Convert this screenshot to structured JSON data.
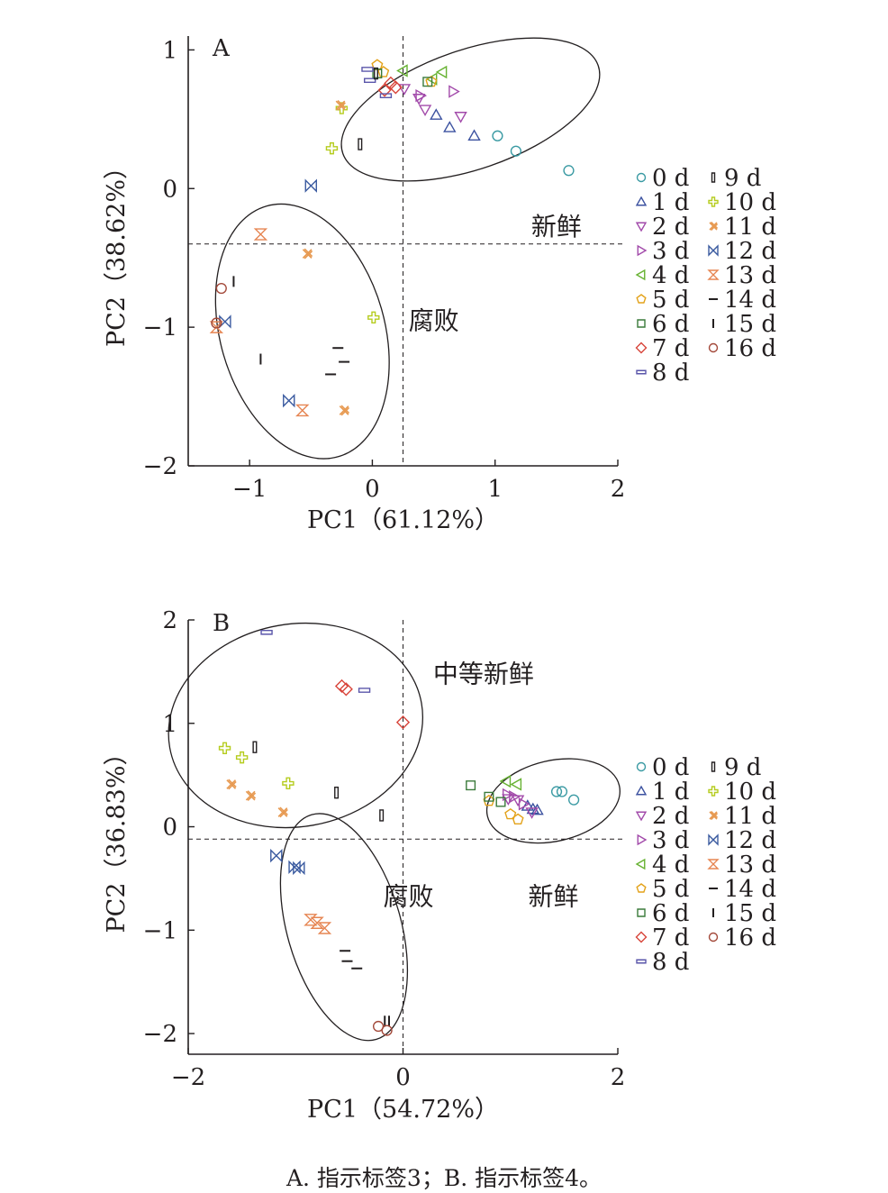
{
  "caption": "A. 指示标签3；B. 指示标签4。",
  "colors": {
    "0 d": "#3a9aa3",
    "1 d": "#3c52a0",
    "2 d": "#a24aaa",
    "3 d": "#a24aaa",
    "4 d": "#67b232",
    "5 d": "#e3a21a",
    "6 d": "#3a7a3a",
    "7 d": "#d8443a",
    "8 d": "#5a56aa",
    "9 d": "#231f20",
    "10 d": "#b5cc1e",
    "11 d": "#e79a52",
    "12 d": "#3b5ba0",
    "13 d": "#e68552",
    "14 d": "#231f20",
    "15 d": "#231f20",
    "16 d": "#a3493a"
  },
  "chart_data": [
    {
      "type": "scatter",
      "panel_label": "A",
      "xlabel": "PC1（61.12%）",
      "ylabel": "PC2（38.62%）",
      "xlim": [
        -1.5,
        2
      ],
      "ylim": [
        -2,
        1.1
      ],
      "xticks": [
        -1,
        0,
        1,
        2
      ],
      "yticks": [
        -2,
        -1,
        0,
        1
      ],
      "xtick_labels": [
        "−1",
        "0",
        "1",
        "2"
      ],
      "ytick_labels": [
        "−2",
        "−1",
        "0",
        "1"
      ],
      "reference_lines": {
        "x": 0.25,
        "y": -0.4
      },
      "legend_position": "right",
      "legend": [
        {
          "symbol": "circle",
          "label": "0 d",
          "key": "0 d"
        },
        {
          "symbol": "tri_up",
          "label": "1 d",
          "key": "1 d"
        },
        {
          "symbol": "tri_down",
          "label": "2 d",
          "key": "2 d"
        },
        {
          "symbol": "tri_right",
          "label": "3 d",
          "key": "3 d"
        },
        {
          "symbol": "tri_left",
          "label": "4 d",
          "key": "4 d"
        },
        {
          "symbol": "pentagon",
          "label": "5 d",
          "key": "5 d"
        },
        {
          "symbol": "square",
          "label": "6 d",
          "key": "6 d"
        },
        {
          "symbol": "diamond",
          "label": "7 d",
          "key": "7 d"
        },
        {
          "symbol": "hbar",
          "label": "8 d",
          "key": "8 d"
        },
        {
          "symbol": "vbar",
          "label": "9 d",
          "key": "9 d"
        },
        {
          "symbol": "plus",
          "label": "10 d",
          "key": "10 d"
        },
        {
          "symbol": "xcross",
          "label": "11 d",
          "key": "11 d"
        },
        {
          "symbol": "bowtie_h",
          "label": "12 d",
          "key": "12 d"
        },
        {
          "symbol": "bowtie_v",
          "label": "13 d",
          "key": "13 d"
        },
        {
          "symbol": "hline",
          "label": "14 d",
          "key": "14 d"
        },
        {
          "symbol": "vline",
          "label": "15 d",
          "key": "15 d"
        },
        {
          "symbol": "circle",
          "label": "16 d",
          "key": "16 d"
        }
      ],
      "annotations": [
        {
          "text": "新鲜",
          "x": 1.5,
          "y": -0.27
        },
        {
          "text": "腐败",
          "x": 0.5,
          "y": -0.95
        }
      ],
      "ellipses": [
        {
          "cx": 0.8,
          "cy": 0.57,
          "rx": 1.1,
          "ry": 0.43,
          "angle": -19
        },
        {
          "cx": -0.57,
          "cy": -1.03,
          "rx": 0.67,
          "ry": 0.94,
          "angle": -16
        }
      ],
      "points": [
        {
          "key": "0 d",
          "symbol": "circle",
          "x": 1.02,
          "y": 0.38
        },
        {
          "key": "0 d",
          "symbol": "circle",
          "x": 1.17,
          "y": 0.27
        },
        {
          "key": "0 d",
          "symbol": "circle",
          "x": 1.6,
          "y": 0.13
        },
        {
          "key": "1 d",
          "symbol": "tri_up",
          "x": 0.52,
          "y": 0.53
        },
        {
          "key": "1 d",
          "symbol": "tri_up",
          "x": 0.63,
          "y": 0.44
        },
        {
          "key": "1 d",
          "symbol": "tri_up",
          "x": 0.83,
          "y": 0.38
        },
        {
          "key": "2 d",
          "symbol": "tri_down",
          "x": 0.26,
          "y": 0.72
        },
        {
          "key": "2 d",
          "symbol": "tri_down",
          "x": 0.38,
          "y": 0.65
        },
        {
          "key": "2 d",
          "symbol": "tri_down",
          "x": 0.43,
          "y": 0.57
        },
        {
          "key": "2 d",
          "symbol": "tri_down",
          "x": 0.72,
          "y": 0.52
        },
        {
          "key": "3 d",
          "symbol": "tri_right",
          "x": 0.66,
          "y": 0.7
        },
        {
          "key": "3 d",
          "symbol": "tri_right",
          "x": 0.39,
          "y": 0.67
        },
        {
          "key": "4 d",
          "symbol": "tri_left",
          "x": 0.25,
          "y": 0.85
        },
        {
          "key": "4 d",
          "symbol": "tri_left",
          "x": 0.57,
          "y": 0.84
        },
        {
          "key": "4 d",
          "symbol": "tri_left",
          "x": 0.49,
          "y": 0.79
        },
        {
          "key": "5 d",
          "symbol": "pentagon",
          "x": 0.04,
          "y": 0.89
        },
        {
          "key": "5 d",
          "symbol": "pentagon",
          "x": 0.09,
          "y": 0.84
        },
        {
          "key": "5 d",
          "symbol": "pentagon",
          "x": 0.48,
          "y": 0.77
        },
        {
          "key": "6 d",
          "symbol": "square",
          "x": 0.45,
          "y": 0.77
        },
        {
          "key": "6 d",
          "symbol": "square",
          "x": 0.04,
          "y": 0.83
        },
        {
          "key": "7 d",
          "symbol": "diamond",
          "x": 0.15,
          "y": 0.76
        },
        {
          "key": "7 d",
          "symbol": "diamond",
          "x": 0.1,
          "y": 0.71
        },
        {
          "key": "7 d",
          "symbol": "diamond",
          "x": 0.19,
          "y": 0.73
        },
        {
          "key": "8 d",
          "symbol": "hbar",
          "x": -0.04,
          "y": 0.86
        },
        {
          "key": "8 d",
          "symbol": "hbar",
          "x": -0.02,
          "y": 0.78
        },
        {
          "key": "8 d",
          "symbol": "hbar",
          "x": 0.11,
          "y": 0.67
        },
        {
          "key": "9 d",
          "symbol": "vbar",
          "x": 0.03,
          "y": 0.83
        },
        {
          "key": "9 d",
          "symbol": "vbar",
          "x": -0.1,
          "y": 0.32
        },
        {
          "key": "10 d",
          "symbol": "plus",
          "x": -0.33,
          "y": 0.29
        },
        {
          "key": "10 d",
          "symbol": "plus",
          "x": -0.25,
          "y": 0.58
        },
        {
          "key": "10 d",
          "symbol": "plus",
          "x": 0.01,
          "y": -0.93
        },
        {
          "key": "11 d",
          "symbol": "xcross",
          "x": -0.26,
          "y": 0.6
        },
        {
          "key": "11 d",
          "symbol": "xcross",
          "x": -0.53,
          "y": -0.47
        },
        {
          "key": "11 d",
          "symbol": "xcross",
          "x": -0.23,
          "y": -1.6
        },
        {
          "key": "12 d",
          "symbol": "bowtie_h",
          "x": -0.5,
          "y": 0.02
        },
        {
          "key": "12 d",
          "symbol": "bowtie_h",
          "x": -1.2,
          "y": -0.96
        },
        {
          "key": "12 d",
          "symbol": "bowtie_h",
          "x": -0.68,
          "y": -1.53
        },
        {
          "key": "13 d",
          "symbol": "bowtie_v",
          "x": -0.91,
          "y": -0.33
        },
        {
          "key": "13 d",
          "symbol": "bowtie_v",
          "x": -1.27,
          "y": -1.0
        },
        {
          "key": "13 d",
          "symbol": "bowtie_v",
          "x": -0.57,
          "y": -1.6
        },
        {
          "key": "14 d",
          "symbol": "hline",
          "x": -0.28,
          "y": -1.15
        },
        {
          "key": "14 d",
          "symbol": "hline",
          "x": -0.23,
          "y": -1.25
        },
        {
          "key": "14 d",
          "symbol": "hline",
          "x": -0.34,
          "y": -1.34
        },
        {
          "key": "15 d",
          "symbol": "vline",
          "x": -1.13,
          "y": -0.67
        },
        {
          "key": "15 d",
          "symbol": "vline",
          "x": -0.91,
          "y": -1.23
        },
        {
          "key": "16 d",
          "symbol": "circle",
          "x": -1.23,
          "y": -0.72
        },
        {
          "key": "16 d",
          "symbol": "circle",
          "x": -1.27,
          "y": -0.97
        }
      ]
    },
    {
      "type": "scatter",
      "panel_label": "B",
      "xlabel": "PC1（54.72%）",
      "ylabel": "PC2（36.83%）",
      "xlim": [
        -2,
        2
      ],
      "ylim": [
        -2.2,
        2
      ],
      "xticks": [
        -2,
        0,
        2
      ],
      "yticks": [
        -2,
        -1,
        0,
        1,
        2
      ],
      "xtick_labels": [
        "−2",
        "0",
        "2"
      ],
      "ytick_labels": [
        "−2",
        "−1",
        "0",
        "1",
        "2"
      ],
      "reference_lines": {
        "x": 0,
        "y": -0.12
      },
      "legend_position": "right",
      "legend": [
        {
          "symbol": "circle",
          "label": "0 d",
          "key": "0 d"
        },
        {
          "symbol": "tri_up",
          "label": "1 d",
          "key": "1 d"
        },
        {
          "symbol": "tri_down",
          "label": "2 d",
          "key": "2 d"
        },
        {
          "symbol": "tri_right",
          "label": "3 d",
          "key": "3 d"
        },
        {
          "symbol": "tri_left",
          "label": "4 d",
          "key": "4 d"
        },
        {
          "symbol": "pentagon",
          "label": "5 d",
          "key": "5 d"
        },
        {
          "symbol": "square",
          "label": "6 d",
          "key": "6 d"
        },
        {
          "symbol": "diamond",
          "label": "7 d",
          "key": "7 d"
        },
        {
          "symbol": "hbar",
          "label": "8 d",
          "key": "8 d"
        },
        {
          "symbol": "vbar",
          "label": "9 d",
          "key": "9 d"
        },
        {
          "symbol": "plus",
          "label": "10 d",
          "key": "10 d"
        },
        {
          "symbol": "xcross",
          "label": "11 d",
          "key": "11 d"
        },
        {
          "symbol": "bowtie_h",
          "label": "12 d",
          "key": "12 d"
        },
        {
          "symbol": "bowtie_v",
          "label": "13 d",
          "key": "13 d"
        },
        {
          "symbol": "hline",
          "label": "14 d",
          "key": "14 d"
        },
        {
          "symbol": "vline",
          "label": "15 d",
          "key": "15 d"
        },
        {
          "symbol": "circle",
          "label": "16 d",
          "key": "16 d"
        }
      ],
      "annotations": [
        {
          "text": "中等新鲜",
          "x": 0.75,
          "y": 1.48
        },
        {
          "text": "腐败",
          "x": 0.05,
          "y": -0.67
        },
        {
          "text": "新鲜",
          "x": 1.4,
          "y": -0.67
        }
      ],
      "ellipses": [
        {
          "cx": -1.0,
          "cy": 0.98,
          "rx": 1.19,
          "ry": 0.98,
          "angle": -10
        },
        {
          "cx": 1.4,
          "cy": 0.25,
          "rx": 0.63,
          "ry": 0.39,
          "angle": -13
        },
        {
          "cx": -0.55,
          "cy": -0.97,
          "rx": 0.53,
          "ry": 1.13,
          "angle": -16
        }
      ],
      "points": [
        {
          "key": "0 d",
          "symbol": "circle",
          "x": 1.43,
          "y": 0.34
        },
        {
          "key": "0 d",
          "symbol": "circle",
          "x": 1.48,
          "y": 0.34
        },
        {
          "key": "0 d",
          "symbol": "circle",
          "x": 1.59,
          "y": 0.26
        },
        {
          "key": "1 d",
          "symbol": "tri_up",
          "x": 1.16,
          "y": 0.2
        },
        {
          "key": "1 d",
          "symbol": "tri_up",
          "x": 1.21,
          "y": 0.17
        },
        {
          "key": "1 d",
          "symbol": "tri_up",
          "x": 1.25,
          "y": 0.16
        },
        {
          "key": "2 d",
          "symbol": "tri_down",
          "x": 0.98,
          "y": 0.27
        },
        {
          "key": "2 d",
          "symbol": "tri_down",
          "x": 1.07,
          "y": 0.26
        },
        {
          "key": "2 d",
          "symbol": "tri_down",
          "x": 1.2,
          "y": 0.14
        },
        {
          "key": "3 d",
          "symbol": "tri_right",
          "x": 0.97,
          "y": 0.31
        },
        {
          "key": "3 d",
          "symbol": "tri_right",
          "x": 1.03,
          "y": 0.29
        },
        {
          "key": "3 d",
          "symbol": "tri_right",
          "x": 1.12,
          "y": 0.22
        },
        {
          "key": "4 d",
          "symbol": "tri_left",
          "x": 0.96,
          "y": 0.44
        },
        {
          "key": "4 d",
          "symbol": "tri_left",
          "x": 1.06,
          "y": 0.41
        },
        {
          "key": "5 d",
          "symbol": "pentagon",
          "x": 0.8,
          "y": 0.25
        },
        {
          "key": "5 d",
          "symbol": "pentagon",
          "x": 1.0,
          "y": 0.12
        },
        {
          "key": "5 d",
          "symbol": "pentagon",
          "x": 1.07,
          "y": 0.07
        },
        {
          "key": "6 d",
          "symbol": "square",
          "x": 0.63,
          "y": 0.4
        },
        {
          "key": "6 d",
          "symbol": "square",
          "x": 0.8,
          "y": 0.29
        },
        {
          "key": "6 d",
          "symbol": "square",
          "x": 0.91,
          "y": 0.24
        },
        {
          "key": "7 d",
          "symbol": "diamond",
          "x": -0.57,
          "y": 1.36
        },
        {
          "key": "7 d",
          "symbol": "diamond",
          "x": -0.53,
          "y": 1.33
        },
        {
          "key": "7 d",
          "symbol": "diamond",
          "x": 0.0,
          "y": 1.01
        },
        {
          "key": "8 d",
          "symbol": "hbar",
          "x": -1.27,
          "y": 1.88
        },
        {
          "key": "8 d",
          "symbol": "hbar",
          "x": -0.36,
          "y": 1.32
        },
        {
          "key": "9 d",
          "symbol": "vbar",
          "x": -1.38,
          "y": 0.77
        },
        {
          "key": "9 d",
          "symbol": "vbar",
          "x": -0.62,
          "y": 0.33
        },
        {
          "key": "9 d",
          "symbol": "vbar",
          "x": -0.2,
          "y": 0.11
        },
        {
          "key": "10 d",
          "symbol": "plus",
          "x": -1.66,
          "y": 0.76
        },
        {
          "key": "10 d",
          "symbol": "plus",
          "x": -1.5,
          "y": 0.67
        },
        {
          "key": "10 d",
          "symbol": "plus",
          "x": -1.07,
          "y": 0.42
        },
        {
          "key": "11 d",
          "symbol": "xcross",
          "x": -1.6,
          "y": 0.41
        },
        {
          "key": "11 d",
          "symbol": "xcross",
          "x": -1.42,
          "y": 0.3
        },
        {
          "key": "11 d",
          "symbol": "xcross",
          "x": -1.12,
          "y": 0.14
        },
        {
          "key": "12 d",
          "symbol": "bowtie_h",
          "x": -1.18,
          "y": -0.28
        },
        {
          "key": "12 d",
          "symbol": "bowtie_h",
          "x": -1.01,
          "y": -0.39
        },
        {
          "key": "12 d",
          "symbol": "bowtie_h",
          "x": -0.97,
          "y": -0.4
        },
        {
          "key": "13 d",
          "symbol": "bowtie_v",
          "x": -0.86,
          "y": -0.9
        },
        {
          "key": "13 d",
          "symbol": "bowtie_v",
          "x": -0.8,
          "y": -0.93
        },
        {
          "key": "13 d",
          "symbol": "bowtie_v",
          "x": -0.73,
          "y": -0.98
        },
        {
          "key": "14 d",
          "symbol": "hline",
          "x": -0.54,
          "y": -1.2
        },
        {
          "key": "14 d",
          "symbol": "hline",
          "x": -0.52,
          "y": -1.3
        },
        {
          "key": "14 d",
          "symbol": "hline",
          "x": -0.43,
          "y": -1.37
        },
        {
          "key": "15 d",
          "symbol": "vline",
          "x": -0.17,
          "y": -1.88
        },
        {
          "key": "15 d",
          "symbol": "vline",
          "x": -0.13,
          "y": -1.88
        },
        {
          "key": "16 d",
          "symbol": "circle",
          "x": -0.23,
          "y": -1.93
        },
        {
          "key": "16 d",
          "symbol": "circle",
          "x": -0.15,
          "y": -1.97
        }
      ]
    }
  ]
}
